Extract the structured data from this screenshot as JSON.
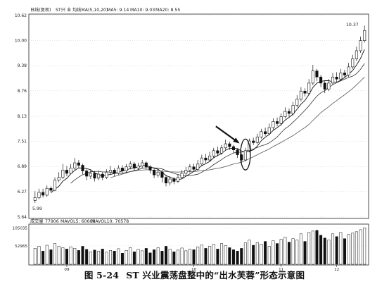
{
  "caption": {
    "figure_number": "图 5-24",
    "title": "ST 兴业震荡盘整中的“出水芙蓉”形态示意图"
  },
  "chart_data": [
    {
      "type": "candlestick",
      "panel": "price",
      "header": {
        "label": "日线(复权)",
        "code": "ST兴 业",
        "indicator": "均线MA(5,10,20)",
        "ma5": "MA5: 9.14",
        "ma10": "MA10: 9.03",
        "ma20": "MA20: 8.55"
      },
      "yaxis": {
        "ticks": [
          "10.62",
          "10.00",
          "9.38",
          "8.76",
          "8.13",
          "7.51",
          "6.89",
          "6.27",
          "5.64"
        ],
        "ylim": [
          5.64,
          10.62
        ]
      },
      "xaxis": {
        "ticks": [
          "09",
          "10",
          "11",
          "12"
        ]
      },
      "annotations": {
        "high_label": "10.37",
        "low_label": "5.99"
      },
      "candles": [
        [
          6.05,
          6.12,
          6.28,
          5.99
        ],
        [
          6.12,
          6.25,
          6.34,
          6.08
        ],
        [
          6.25,
          6.18,
          6.34,
          6.12
        ],
        [
          6.18,
          6.35,
          6.42,
          6.14
        ],
        [
          6.35,
          6.3,
          6.4,
          6.26
        ],
        [
          6.3,
          6.55,
          6.62,
          6.28
        ],
        [
          6.55,
          6.62,
          6.75,
          6.5
        ],
        [
          6.62,
          6.8,
          6.95,
          6.58
        ],
        [
          6.8,
          6.72,
          6.9,
          6.65
        ],
        [
          6.72,
          6.85,
          6.95,
          6.7
        ],
        [
          6.85,
          6.98,
          7.1,
          6.8
        ],
        [
          6.98,
          6.92,
          7.05,
          6.85
        ],
        [
          6.92,
          6.78,
          6.96,
          6.7
        ],
        [
          6.78,
          6.65,
          6.82,
          6.55
        ],
        [
          6.65,
          6.72,
          6.8,
          6.58
        ],
        [
          6.72,
          6.6,
          6.78,
          6.52
        ],
        [
          6.6,
          6.7,
          6.78,
          6.55
        ],
        [
          6.7,
          6.62,
          6.75,
          6.55
        ],
        [
          6.62,
          6.75,
          6.82,
          6.58
        ],
        [
          6.75,
          6.8,
          6.9,
          6.7
        ],
        [
          6.8,
          6.72,
          6.85,
          6.65
        ],
        [
          6.72,
          6.85,
          6.92,
          6.68
        ],
        [
          6.85,
          6.78,
          6.92,
          6.72
        ],
        [
          6.78,
          6.88,
          6.95,
          6.72
        ],
        [
          6.88,
          6.95,
          7.02,
          6.82
        ],
        [
          6.95,
          6.85,
          7.0,
          6.78
        ],
        [
          6.85,
          6.9,
          6.98,
          6.8
        ],
        [
          6.9,
          6.98,
          7.05,
          6.85
        ],
        [
          6.98,
          6.88,
          7.02,
          6.82
        ],
        [
          6.88,
          6.8,
          6.92,
          6.72
        ],
        [
          6.8,
          6.68,
          6.84,
          6.6
        ],
        [
          6.68,
          6.75,
          6.82,
          6.62
        ],
        [
          6.75,
          6.62,
          6.8,
          6.5
        ],
        [
          6.62,
          6.48,
          6.68,
          6.4
        ],
        [
          6.48,
          6.58,
          6.65,
          6.42
        ],
        [
          6.58,
          6.52,
          6.62,
          6.45
        ],
        [
          6.52,
          6.62,
          6.7,
          6.48
        ],
        [
          6.62,
          6.72,
          6.8,
          6.58
        ],
        [
          6.72,
          6.8,
          6.88,
          6.66
        ],
        [
          6.8,
          6.88,
          6.95,
          6.74
        ],
        [
          6.88,
          6.82,
          6.96,
          6.76
        ],
        [
          6.82,
          6.95,
          7.05,
          6.78
        ],
        [
          6.95,
          7.1,
          7.18,
          6.9
        ],
        [
          7.1,
          7.05,
          7.2,
          6.98
        ],
        [
          7.05,
          7.15,
          7.25,
          7.0
        ],
        [
          7.15,
          7.28,
          7.35,
          7.1
        ],
        [
          7.28,
          7.22,
          7.38,
          7.15
        ],
        [
          7.22,
          7.35,
          7.42,
          7.18
        ],
        [
          7.35,
          7.45,
          7.55,
          7.3
        ],
        [
          7.45,
          7.38,
          7.5,
          7.3
        ],
        [
          7.38,
          7.3,
          7.42,
          7.22
        ],
        [
          7.3,
          7.18,
          7.34,
          7.1
        ],
        [
          7.18,
          7.05,
          7.22,
          6.98
        ],
        [
          7.05,
          7.28,
          7.35,
          7.02
        ],
        [
          7.28,
          7.52,
          7.58,
          7.24
        ],
        [
          7.52,
          7.48,
          7.6,
          7.42
        ],
        [
          7.48,
          7.62,
          7.7,
          7.44
        ],
        [
          7.62,
          7.75,
          7.82,
          7.58
        ],
        [
          7.75,
          7.7,
          7.85,
          7.65
        ],
        [
          7.7,
          7.85,
          7.95,
          7.66
        ],
        [
          7.85,
          8.0,
          8.08,
          7.8
        ],
        [
          8.0,
          7.95,
          8.1,
          7.88
        ],
        [
          7.95,
          8.12,
          8.2,
          7.9
        ],
        [
          8.12,
          8.25,
          8.35,
          8.08
        ],
        [
          8.25,
          8.2,
          8.32,
          8.12
        ],
        [
          8.2,
          8.4,
          8.48,
          8.15
        ],
        [
          8.4,
          8.55,
          8.65,
          8.35
        ],
        [
          8.55,
          8.75,
          8.85,
          8.5
        ],
        [
          8.75,
          8.7,
          8.82,
          8.62
        ],
        [
          8.7,
          8.95,
          9.05,
          8.65
        ],
        [
          8.95,
          9.25,
          9.4,
          8.9
        ],
        [
          9.25,
          9.1,
          9.3,
          9.0
        ],
        [
          9.1,
          8.95,
          9.15,
          8.85
        ],
        [
          8.95,
          8.8,
          9.0,
          8.7
        ],
        [
          8.8,
          8.95,
          9.05,
          8.75
        ],
        [
          8.95,
          9.1,
          9.2,
          8.9
        ],
        [
          9.1,
          9.05,
          9.22,
          8.98
        ],
        [
          9.05,
          9.2,
          9.3,
          9.0
        ],
        [
          9.2,
          9.15,
          9.28,
          9.08
        ],
        [
          9.15,
          9.35,
          9.45,
          9.1
        ],
        [
          9.35,
          9.55,
          9.65,
          9.3
        ],
        [
          9.55,
          9.75,
          9.85,
          9.5
        ],
        [
          9.75,
          10.0,
          10.1,
          9.7
        ],
        [
          10.0,
          10.25,
          10.37,
          9.95
        ]
      ],
      "moving_averages": {
        "periods": [
          5,
          10,
          20
        ],
        "colors": [
          "#111111",
          "#333333",
          "#555555"
        ]
      },
      "callout": {
        "type": "arrow-and-ellipse",
        "target_candle_index": 53
      }
    },
    {
      "type": "bar",
      "panel": "volume",
      "header": {
        "label": "成交量",
        "value": "77906",
        "mavol5": "MAVOL5: 60668",
        "mavol10": "MAVOL10: 70578"
      },
      "yaxis": {
        "ticks": [
          "105035",
          "52965"
        ],
        "ylim": [
          0,
          110000
        ]
      },
      "values": [
        46000,
        52000,
        38000,
        55000,
        42000,
        60000,
        52000,
        48000,
        44000,
        50000,
        46000,
        40000,
        52000,
        43000,
        36000,
        41000,
        38000,
        44000,
        35000,
        40000,
        38000,
        45000,
        32000,
        40000,
        48000,
        36000,
        43000,
        39000,
        46000,
        33000,
        42000,
        48000,
        38000,
        52000,
        44000,
        36000,
        41000,
        47000,
        39000,
        44000,
        42000,
        50000,
        56000,
        46000,
        52000,
        58000,
        44000,
        60000,
        54000,
        48000,
        42000,
        38000,
        46000,
        62000,
        70000,
        55000,
        63000,
        58000,
        66000,
        52000,
        68000,
        60000,
        72000,
        78000,
        64000,
        74000,
        70000,
        88000,
        66000,
        92000,
        96000,
        98000,
        84000,
        76000,
        70000,
        88000,
        80000,
        92000,
        74000,
        86000,
        90000,
        94000,
        100000,
        105035
      ]
    }
  ]
}
